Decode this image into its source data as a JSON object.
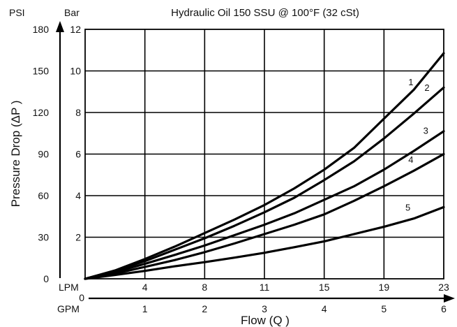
{
  "chart_data": {
    "type": "line",
    "title": "Hydraulic Oil 150 SSU @ 100°F (32 cSt)",
    "ylabel": "Pressure Drop (ΔP )",
    "xlabel": "Flow (Q )",
    "y_unit_primary": "PSI",
    "y_unit_secondary": "Bar",
    "x_unit_primary": "LPM",
    "x_unit_secondary": "GPM",
    "y_psi_ticks": [
      "180",
      "150",
      "120",
      "90",
      "60",
      "30",
      "0"
    ],
    "y_bar_ticks": [
      "12",
      "10",
      "8",
      "6",
      "4",
      "2"
    ],
    "x_lpm_ticks": [
      "4",
      "8",
      "11",
      "15",
      "19",
      "23"
    ],
    "x_gpm_ticks": [
      "0",
      "1",
      "2",
      "3",
      "4",
      "5",
      "6"
    ],
    "xlim": [
      0,
      6
    ],
    "ylim": [
      0,
      12
    ],
    "x": [
      0,
      0.5,
      1,
      1.5,
      2,
      2.5,
      3,
      3.5,
      4,
      4.5,
      5,
      5.5,
      6
    ],
    "series": [
      {
        "name": "1",
        "values": [
          0,
          0.4,
          0.95,
          1.55,
          2.2,
          2.85,
          3.55,
          4.35,
          5.25,
          6.3,
          7.7,
          9.1,
          10.85
        ]
      },
      {
        "name": "2",
        "values": [
          0,
          0.38,
          0.85,
          1.4,
          1.95,
          2.55,
          3.2,
          3.9,
          4.75,
          5.65,
          6.75,
          7.95,
          9.2
        ]
      },
      {
        "name": "3",
        "values": [
          0,
          0.32,
          0.72,
          1.15,
          1.6,
          2.1,
          2.6,
          3.15,
          3.8,
          4.45,
          5.25,
          6.15,
          7.1
        ]
      },
      {
        "name": "4",
        "values": [
          0,
          0.25,
          0.57,
          0.9,
          1.28,
          1.7,
          2.15,
          2.6,
          3.1,
          3.75,
          4.45,
          5.2,
          6.0
        ]
      },
      {
        "name": "5",
        "values": [
          0,
          0.18,
          0.38,
          0.6,
          0.8,
          1.02,
          1.25,
          1.52,
          1.8,
          2.15,
          2.5,
          2.9,
          3.45
        ]
      }
    ],
    "grid": true
  }
}
